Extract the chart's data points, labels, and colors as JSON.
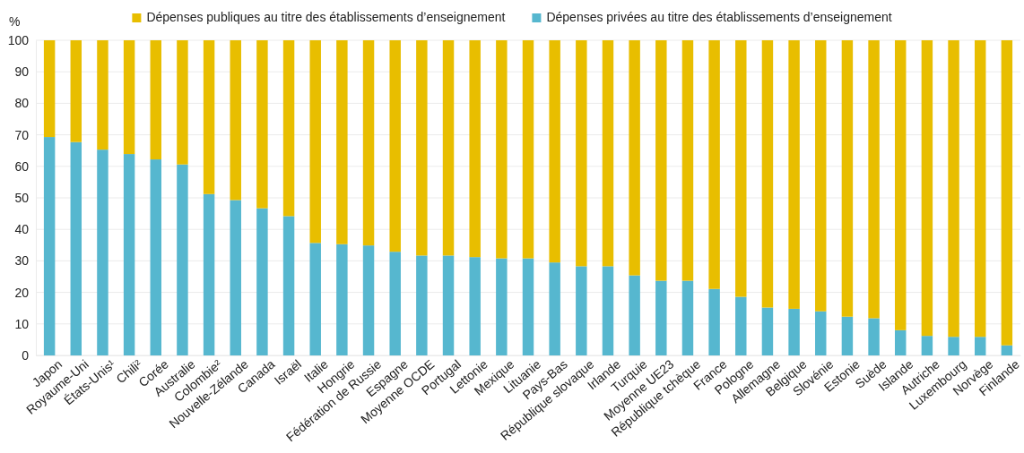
{
  "chart_data": {
    "type": "bar",
    "stacked": true,
    "ylabel": "%",
    "categories": [
      "Japon",
      "Royaume-Uni",
      "États-Unis¹",
      "Chili²",
      "Corée",
      "Australie",
      "Colombie²",
      "Nouvelle-Zélande",
      "Canada",
      "Israël",
      "Italie",
      "Hongrie",
      "Fédération de Russie",
      "Espagne",
      "Moyenne OCDE",
      "Portugal",
      "Lettonie",
      "Mexique",
      "Lituanie",
      "Pays-Bas",
      "République slovaque",
      "Irlande",
      "Turquie",
      "Moyenne UE23",
      "République tchèque",
      "France",
      "Pologne",
      "Allemagne",
      "Belgique",
      "Slovénie",
      "Estonie",
      "Suède",
      "Islande",
      "Autriche",
      "Luxembourg",
      "Norvège",
      "Finlande"
    ],
    "series": [
      {
        "name": "Dépenses privées au titre des établissements d’enseignement",
        "color": "#56b7cf",
        "values": [
          69.3,
          67.7,
          65.3,
          63.9,
          62.2,
          60.6,
          51.2,
          49.3,
          46.7,
          44.2,
          35.7,
          35.3,
          34.9,
          32.9,
          31.7,
          31.7,
          31.2,
          30.8,
          30.8,
          29.5,
          28.3,
          28.3,
          25.4,
          23.7,
          23.7,
          21.1,
          18.6,
          15.2,
          14.8,
          14.0,
          12.3,
          11.8,
          8.0,
          6.2,
          5.9,
          5.9,
          3.2
        ]
      },
      {
        "name": "Dépenses publiques au titre des établissements d’enseignement",
        "color": "#e8be00",
        "values": [
          30.7,
          32.3,
          34.7,
          36.1,
          37.8,
          39.4,
          48.8,
          50.7,
          53.3,
          55.8,
          64.3,
          64.7,
          65.1,
          67.1,
          68.3,
          68.3,
          68.8,
          69.2,
          69.2,
          70.5,
          71.7,
          71.7,
          74.6,
          76.3,
          76.3,
          78.9,
          81.4,
          84.8,
          85.2,
          86.0,
          87.7,
          88.2,
          92.0,
          93.8,
          94.1,
          94.1,
          96.8
        ]
      }
    ],
    "ylim": [
      0,
      100
    ],
    "yticks": [
      0,
      10,
      20,
      30,
      40,
      50,
      60,
      70,
      80,
      90,
      100
    ],
    "grid": "y",
    "legend": "top"
  }
}
